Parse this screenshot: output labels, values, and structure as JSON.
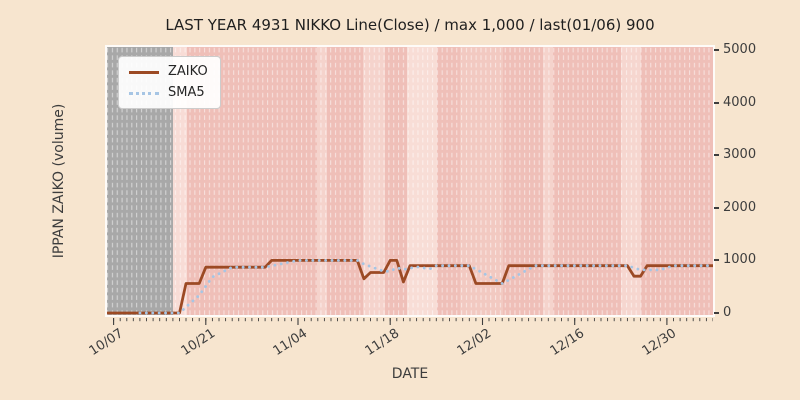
{
  "title": "LAST YEAR 4931 NIKKO Line(Close) / max 1,000 / last(01/06) 900",
  "x_axis": {
    "label": "DATE",
    "tick_labels": [
      "10/07",
      "10/21",
      "11/04",
      "11/18",
      "12/02",
      "12/16",
      "12/30"
    ],
    "tick_day_indices": [
      0,
      14,
      28,
      42,
      56,
      70,
      84
    ],
    "days_per_minor_tick": 1
  },
  "y_axis": {
    "label": "IPPAN ZAIKO (volume)",
    "tick_labels": [
      "0",
      "1000",
      "2000",
      "3000",
      "4000",
      "5000"
    ],
    "tick_values": [
      0,
      1000,
      2000,
      3000,
      4000,
      5000
    ],
    "min": 0,
    "max": 5000
  },
  "legend": {
    "items": [
      {
        "label": "ZAIKO",
        "color": "#9c4a24",
        "style": "solid"
      },
      {
        "label": "SMA5",
        "color": "#a6c5e4",
        "style": "dotted"
      }
    ]
  },
  "colors": {
    "figure_bg": "#f7e5cf",
    "plot_bg": "#efbfb8",
    "no_data_band": "#a8a8a8",
    "grid_dash": "rgba(255,255,255,0.5)",
    "tick_text": "#3d3d3d",
    "title_text": "#1f1f1f",
    "zaiko_line": "#9c4a24",
    "sma5_line": "#a6c5e4"
  },
  "background_bands": [
    {
      "from": 0.0,
      "to": 0.1089,
      "color": "#a8a8a8"
    },
    {
      "from": 0.1089,
      "to": 0.132,
      "color": "#f8dcd6"
    },
    {
      "from": 0.3465,
      "to": 0.363,
      "color": "#f5d3cc"
    },
    {
      "from": 0.4224,
      "to": 0.4587,
      "color": "#f5d3cc"
    },
    {
      "from": 0.495,
      "to": 0.5446,
      "color": "#f8ddd6"
    },
    {
      "from": 0.5825,
      "to": 0.6535,
      "color": "#f2c9c1"
    },
    {
      "from": 0.7195,
      "to": 0.736,
      "color": "#f5d3cc"
    },
    {
      "from": 0.8482,
      "to": 0.8812,
      "color": "#f6d6cf"
    }
  ],
  "chart_data": {
    "type": "line",
    "title": "LAST YEAR 4931 NIKKO Line(Close) / max 1,000 / last(01/06) 900",
    "xlabel": "DATE",
    "ylabel": "IPPAN ZAIKO (volume)",
    "ylim": [
      0,
      5000
    ],
    "x_start_date": "10/07",
    "x_end_date": "01/06",
    "x_tick_labels": [
      "10/07",
      "10/21",
      "11/04",
      "11/18",
      "12/02",
      "12/16",
      "12/30"
    ],
    "legend_position": "upper left",
    "grid": "vertical-dashed",
    "stats": {
      "max": 1000,
      "last_value": 900,
      "last_date": "01/06"
    },
    "series": [
      {
        "name": "ZAIKO",
        "style": "solid",
        "note": "daily values, one per day starting 10/07 ending 01/06",
        "values": [
          0,
          0,
          0,
          0,
          0,
          0,
          0,
          0,
          0,
          0,
          0,
          560,
          560,
          560,
          870,
          870,
          870,
          870,
          870,
          870,
          870,
          870,
          870,
          870,
          1000,
          1000,
          1000,
          1000,
          1000,
          1000,
          1000,
          1000,
          1000,
          1000,
          1000,
          1000,
          1000,
          1000,
          650,
          770,
          770,
          770,
          1000,
          1000,
          590,
          900,
          900,
          900,
          900,
          900,
          900,
          900,
          900,
          900,
          900,
          560,
          560,
          560,
          560,
          560,
          900,
          900,
          900,
          900,
          900,
          900,
          900,
          900,
          900,
          900,
          900,
          900,
          900,
          900,
          900,
          900,
          900,
          900,
          900,
          700,
          700,
          900,
          900,
          900,
          900,
          900,
          900,
          900,
          900,
          900,
          900,
          900
        ]
      },
      {
        "name": "SMA5",
        "style": "dotted",
        "derived": "5-day trailing moving average of ZAIKO"
      }
    ]
  }
}
